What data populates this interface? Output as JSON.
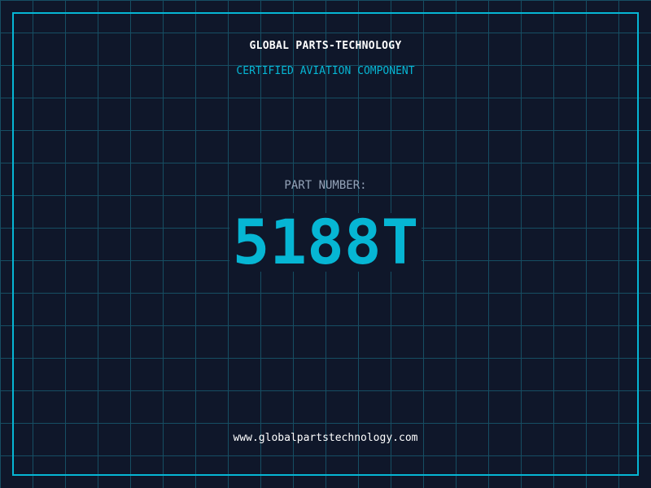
{
  "header": {
    "title": "GLOBAL PARTS-TECHNOLOGY",
    "subtitle": "CERTIFIED AVIATION COMPONENT"
  },
  "part": {
    "label": "PART NUMBER:",
    "number": "5188T"
  },
  "footer": {
    "url": "www.globalpartstechnology.com"
  },
  "colors": {
    "background": "#0f172a",
    "accent": "#06b6d4",
    "grid": "#164e63"
  }
}
